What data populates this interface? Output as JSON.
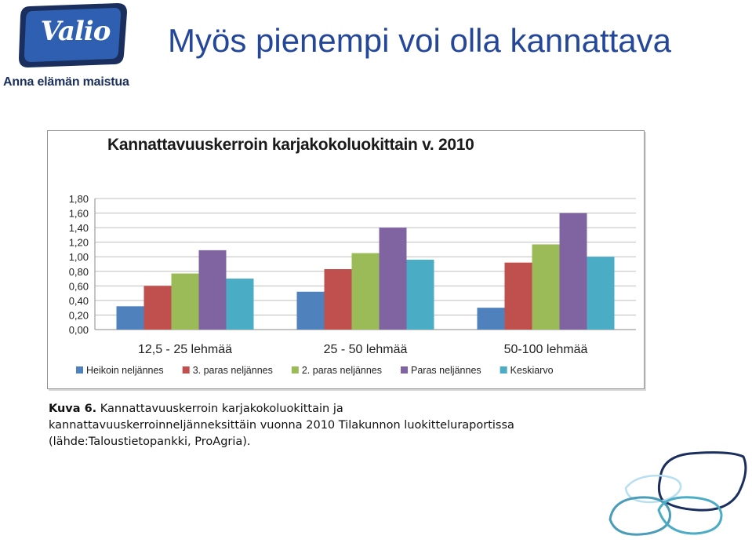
{
  "logo": {
    "brand": "Valio",
    "slogan": "Anna elämän maistua"
  },
  "slide": {
    "title": "Myös pienempi voi olla kannattava"
  },
  "chart_data": {
    "type": "bar",
    "title": "Kannattavuuskerroin karjakokoluokittain v. 2010",
    "categories": [
      "12,5 - 25 lehmää",
      "25 - 50 lehmää",
      "50-100 lehmää"
    ],
    "series": [
      {
        "name": "Heikoin neljännes",
        "color": "#4f81bd",
        "values": [
          0.32,
          0.52,
          0.3
        ]
      },
      {
        "name": "3. paras neljännes",
        "color": "#c0504d",
        "values": [
          0.6,
          0.83,
          0.92
        ]
      },
      {
        "name": "2. paras neljännes",
        "color": "#9bbb59",
        "values": [
          0.77,
          1.05,
          1.17
        ]
      },
      {
        "name": "Paras neljännes",
        "color": "#8064a2",
        "values": [
          1.09,
          1.4,
          1.6
        ]
      },
      {
        "name": "Keskiarvo",
        "color": "#4bacc6",
        "values": [
          0.7,
          0.96,
          1.0
        ]
      }
    ],
    "ylim": [
      0,
      1.8
    ],
    "yticks": [
      "0,00",
      "0,20",
      "0,40",
      "0,60",
      "0,80",
      "1,00",
      "1,20",
      "1,40",
      "1,60",
      "1,80"
    ],
    "xlabel": "",
    "ylabel": "",
    "grid": true,
    "legend": "bottom"
  },
  "caption": {
    "label": "Kuva 6.",
    "line1": "Kannattavuuskerroin karjakokoluokittain ja",
    "line2": "kannattavuuskerroinneljänneksittäin vuonna 2010 Tilakunnon luokitteluraportissa",
    "line3": "(lähde:Taloustietopankki, ProAgria)."
  },
  "colors": {
    "title_blue": "#24479a",
    "logo_navy": "#1b2f5e",
    "logo_blue": "#2e5fb0"
  }
}
